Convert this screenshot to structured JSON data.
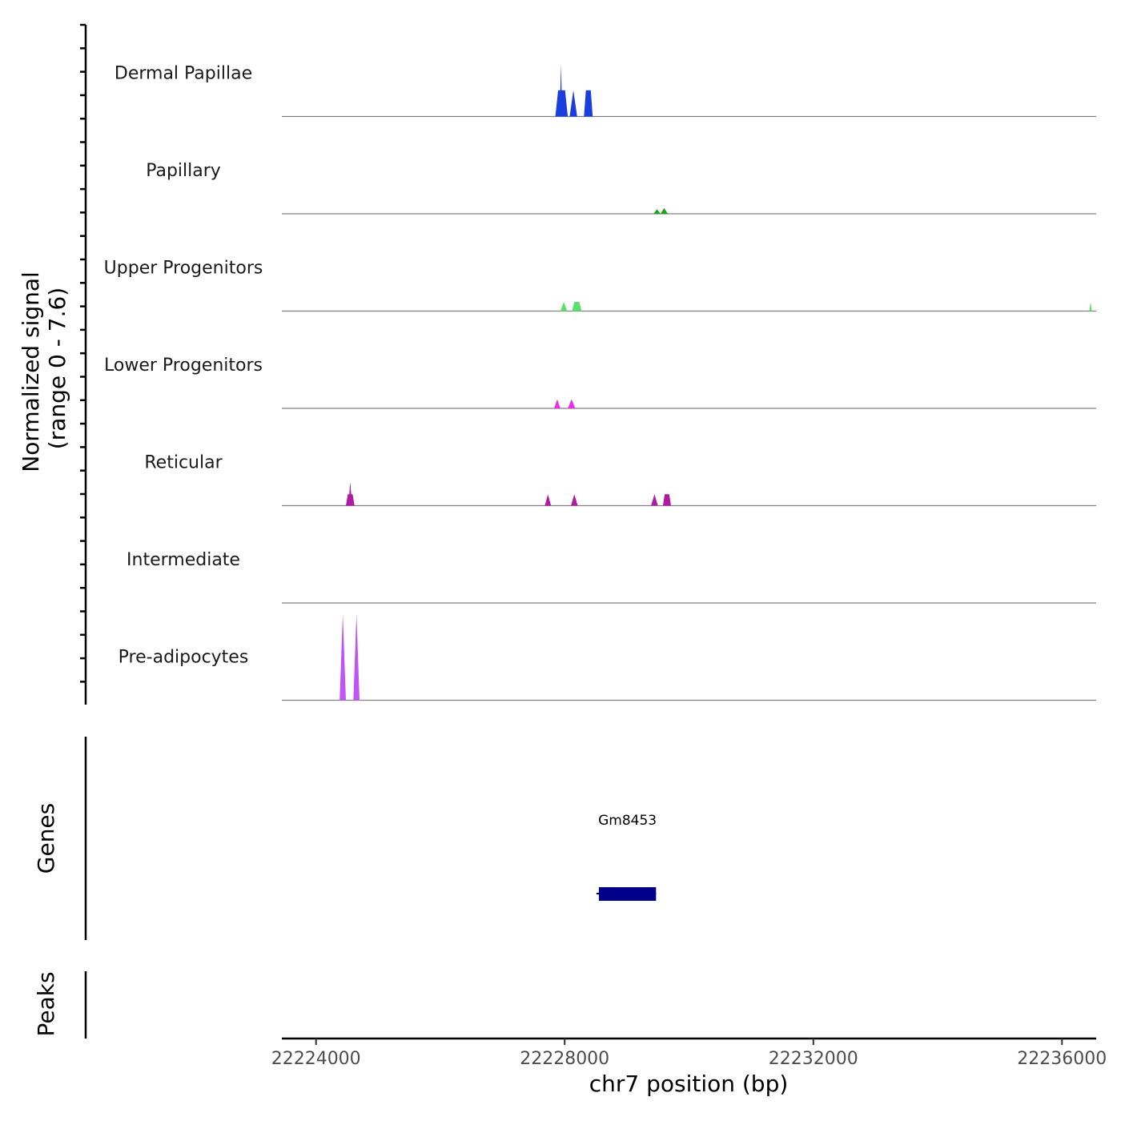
{
  "chart_data": {
    "type": "area",
    "subtype": "coverage-tracks",
    "chromosome": "chr7",
    "ylabel_line1": "Normalized signal",
    "ylabel_line2": "(range 0 - 7.6)",
    "y_range": [
      0,
      7.6
    ],
    "xlabel": "chr7 position (bp)",
    "xlim": [
      22223450,
      22236550
    ],
    "x_ticks": [
      22224000,
      22228000,
      22232000,
      22236000
    ],
    "x_tick_labels": [
      "22224000",
      "22228000",
      "22232000",
      "22236000"
    ],
    "tracks": [
      {
        "name": "Dermal Papillae",
        "color": "#1a3fdd",
        "peaks": [
          {
            "start": 22227850,
            "end": 22228050,
            "value": 2.3
          },
          {
            "start": 22227920,
            "end": 22227960,
            "value": 4.6
          },
          {
            "start": 22228080,
            "end": 22228200,
            "value": 2.3
          },
          {
            "start": 22228310,
            "end": 22228450,
            "value": 2.3
          }
        ]
      },
      {
        "name": "Papillary",
        "color": "#1aa51a",
        "peaks": [
          {
            "start": 22229430,
            "end": 22229540,
            "value": 0.4
          },
          {
            "start": 22229540,
            "end": 22229660,
            "value": 0.5
          }
        ]
      },
      {
        "name": "Upper Progenitors",
        "color": "#5ce06c",
        "peaks": [
          {
            "start": 22227930,
            "end": 22228040,
            "value": 0.8
          },
          {
            "start": 22228120,
            "end": 22228270,
            "value": 0.8
          },
          {
            "start": 22236440,
            "end": 22236480,
            "value": 0.8
          }
        ]
      },
      {
        "name": "Lower Progenitors",
        "color": "#ee2ee6",
        "peaks": [
          {
            "start": 22227830,
            "end": 22227930,
            "value": 0.8
          },
          {
            "start": 22228050,
            "end": 22228170,
            "value": 0.8
          }
        ]
      },
      {
        "name": "Reticular",
        "color": "#b11aa3",
        "peaks": [
          {
            "start": 22224480,
            "end": 22224620,
            "value": 1.0
          },
          {
            "start": 22224520,
            "end": 22224580,
            "value": 2.1
          },
          {
            "start": 22227680,
            "end": 22227780,
            "value": 1.0
          },
          {
            "start": 22228100,
            "end": 22228210,
            "value": 1.0
          },
          {
            "start": 22229390,
            "end": 22229500,
            "value": 1.0
          },
          {
            "start": 22229580,
            "end": 22229710,
            "value": 1.0
          }
        ]
      },
      {
        "name": "Intermediate",
        "color": "#7a4fd0",
        "peaks": []
      },
      {
        "name": "Pre-adipocytes",
        "color": "#c054f5",
        "peaks": [
          {
            "start": 22224380,
            "end": 22224480,
            "value": 7.6
          },
          {
            "start": 22224600,
            "end": 22224700,
            "value": 7.6
          }
        ]
      }
    ],
    "genes_label": "Genes",
    "genes": [
      {
        "name": "Gm8453",
        "start": 22228550,
        "end": 22229470,
        "color": "#00008b"
      }
    ],
    "peaks_label": "Peaks"
  }
}
